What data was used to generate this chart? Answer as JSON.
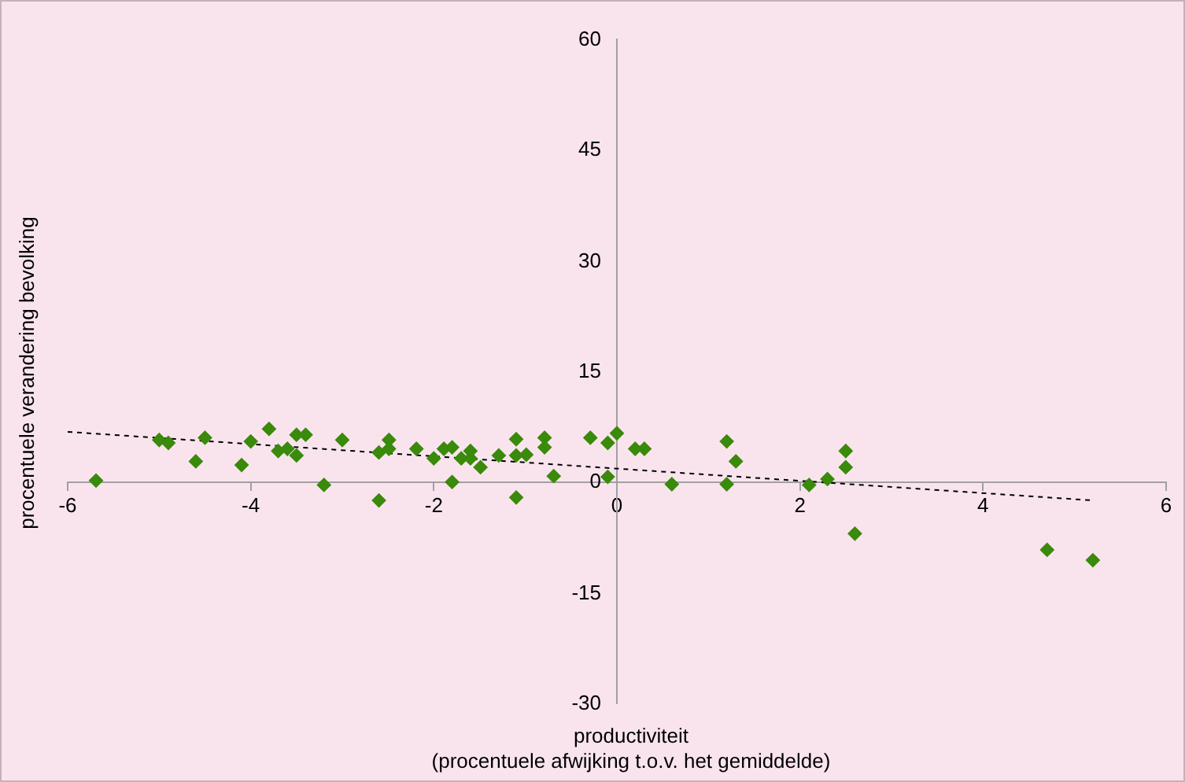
{
  "chart_data": {
    "type": "scatter",
    "xlabel": "productiviteit\n(procentuele afwijking t.o.v. het gemiddelde)",
    "ylabel": "procentuele verandering bevolking",
    "xlim": [
      -6,
      6
    ],
    "xticks": [
      -6,
      -4,
      -2,
      0,
      2,
      4,
      6
    ],
    "ylim": [
      -30,
      60
    ],
    "yticks": [
      -30,
      -15,
      0,
      15,
      30,
      45,
      60
    ],
    "grid": false,
    "legend": false,
    "marker": "diamond",
    "series": [
      {
        "type": "scatter",
        "color": "#3a8a0b",
        "x": [
          -5.69,
          -5.0,
          -4.9,
          -4.6,
          -4.5,
          -4.1,
          -4.0,
          -3.8,
          -3.7,
          -3.6,
          -3.5,
          -3.5,
          -3.4,
          -3.2,
          -3.0,
          -2.6,
          -2.6,
          -2.49,
          -2.49,
          -2.19,
          -2.0,
          -1.89,
          -1.8,
          -1.8,
          -1.7,
          -1.6,
          -1.6,
          -1.49,
          -1.29,
          -1.1,
          -1.1,
          -1.1,
          -0.99,
          -0.79,
          -0.79,
          -0.69,
          -0.29,
          -0.1,
          -0.1,
          0.0,
          0.2,
          0.3,
          0.6,
          1.2,
          1.2,
          1.3,
          2.1,
          2.3,
          2.5,
          2.5,
          2.6,
          4.7,
          5.2
        ],
        "values": [
          0.2,
          5.7,
          5.3,
          2.8,
          6.0,
          2.3,
          5.5,
          7.2,
          4.2,
          4.5,
          6.4,
          3.6,
          6.4,
          -0.4,
          5.7,
          4.0,
          -2.5,
          5.7,
          4.5,
          4.5,
          3.2,
          4.5,
          4.7,
          0.0,
          3.2,
          4.2,
          3.2,
          2.0,
          3.6,
          5.8,
          3.6,
          -2.1,
          3.7,
          6.0,
          4.7,
          0.8,
          6.0,
          5.3,
          0.7,
          6.6,
          4.5,
          4.5,
          -0.3,
          5.5,
          -0.3,
          2.8,
          -0.4,
          0.4,
          4.2,
          2.0,
          -7.0,
          -9.2,
          -10.6
        ]
      },
      {
        "type": "line",
        "color": "#000000",
        "line_style": "dashed",
        "marker": "none",
        "x": [
          -6,
          5.2
        ],
        "values": [
          6.8,
          -2.5
        ]
      }
    ]
  }
}
